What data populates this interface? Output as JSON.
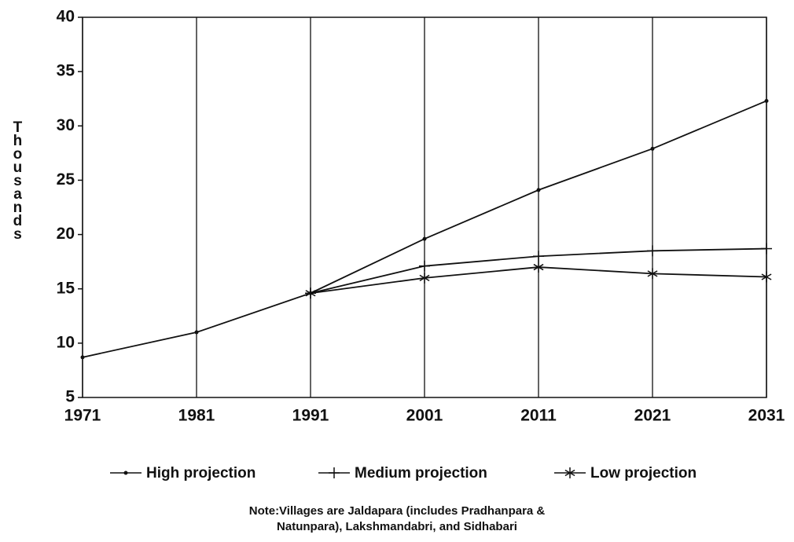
{
  "chart_data": {
    "type": "line",
    "y_label": "Thousands",
    "x": [
      1971,
      1981,
      1991,
      2001,
      2011,
      2021,
      2031
    ],
    "xlim": [
      1971,
      2031
    ],
    "xticks": [
      1971,
      1981,
      1991,
      2001,
      2011,
      2021,
      2031
    ],
    "ylim": [
      5,
      40
    ],
    "yticks": [
      5,
      10,
      15,
      20,
      25,
      30,
      35,
      40
    ],
    "grid": "x",
    "series": [
      {
        "name": "High projection",
        "color": "#111111",
        "marker": "dot",
        "values": [
          8.7,
          11.0,
          14.6,
          19.6,
          24.1,
          27.9,
          32.3
        ]
      },
      {
        "name": "Medium projection",
        "color": "#111111",
        "marker": "plus",
        "values": [
          null,
          null,
          14.6,
          17.1,
          18.0,
          18.5,
          18.7
        ]
      },
      {
        "name": "Low projection",
        "color": "#111111",
        "marker": "star",
        "values": [
          null,
          null,
          14.6,
          16.0,
          17.0,
          16.4,
          16.1
        ]
      }
    ],
    "note": [
      "Note:Villages are Jaldapara (includes Pradhanpara &",
      "Natunpara), Lakshmandabri, and Sidhabari"
    ]
  }
}
